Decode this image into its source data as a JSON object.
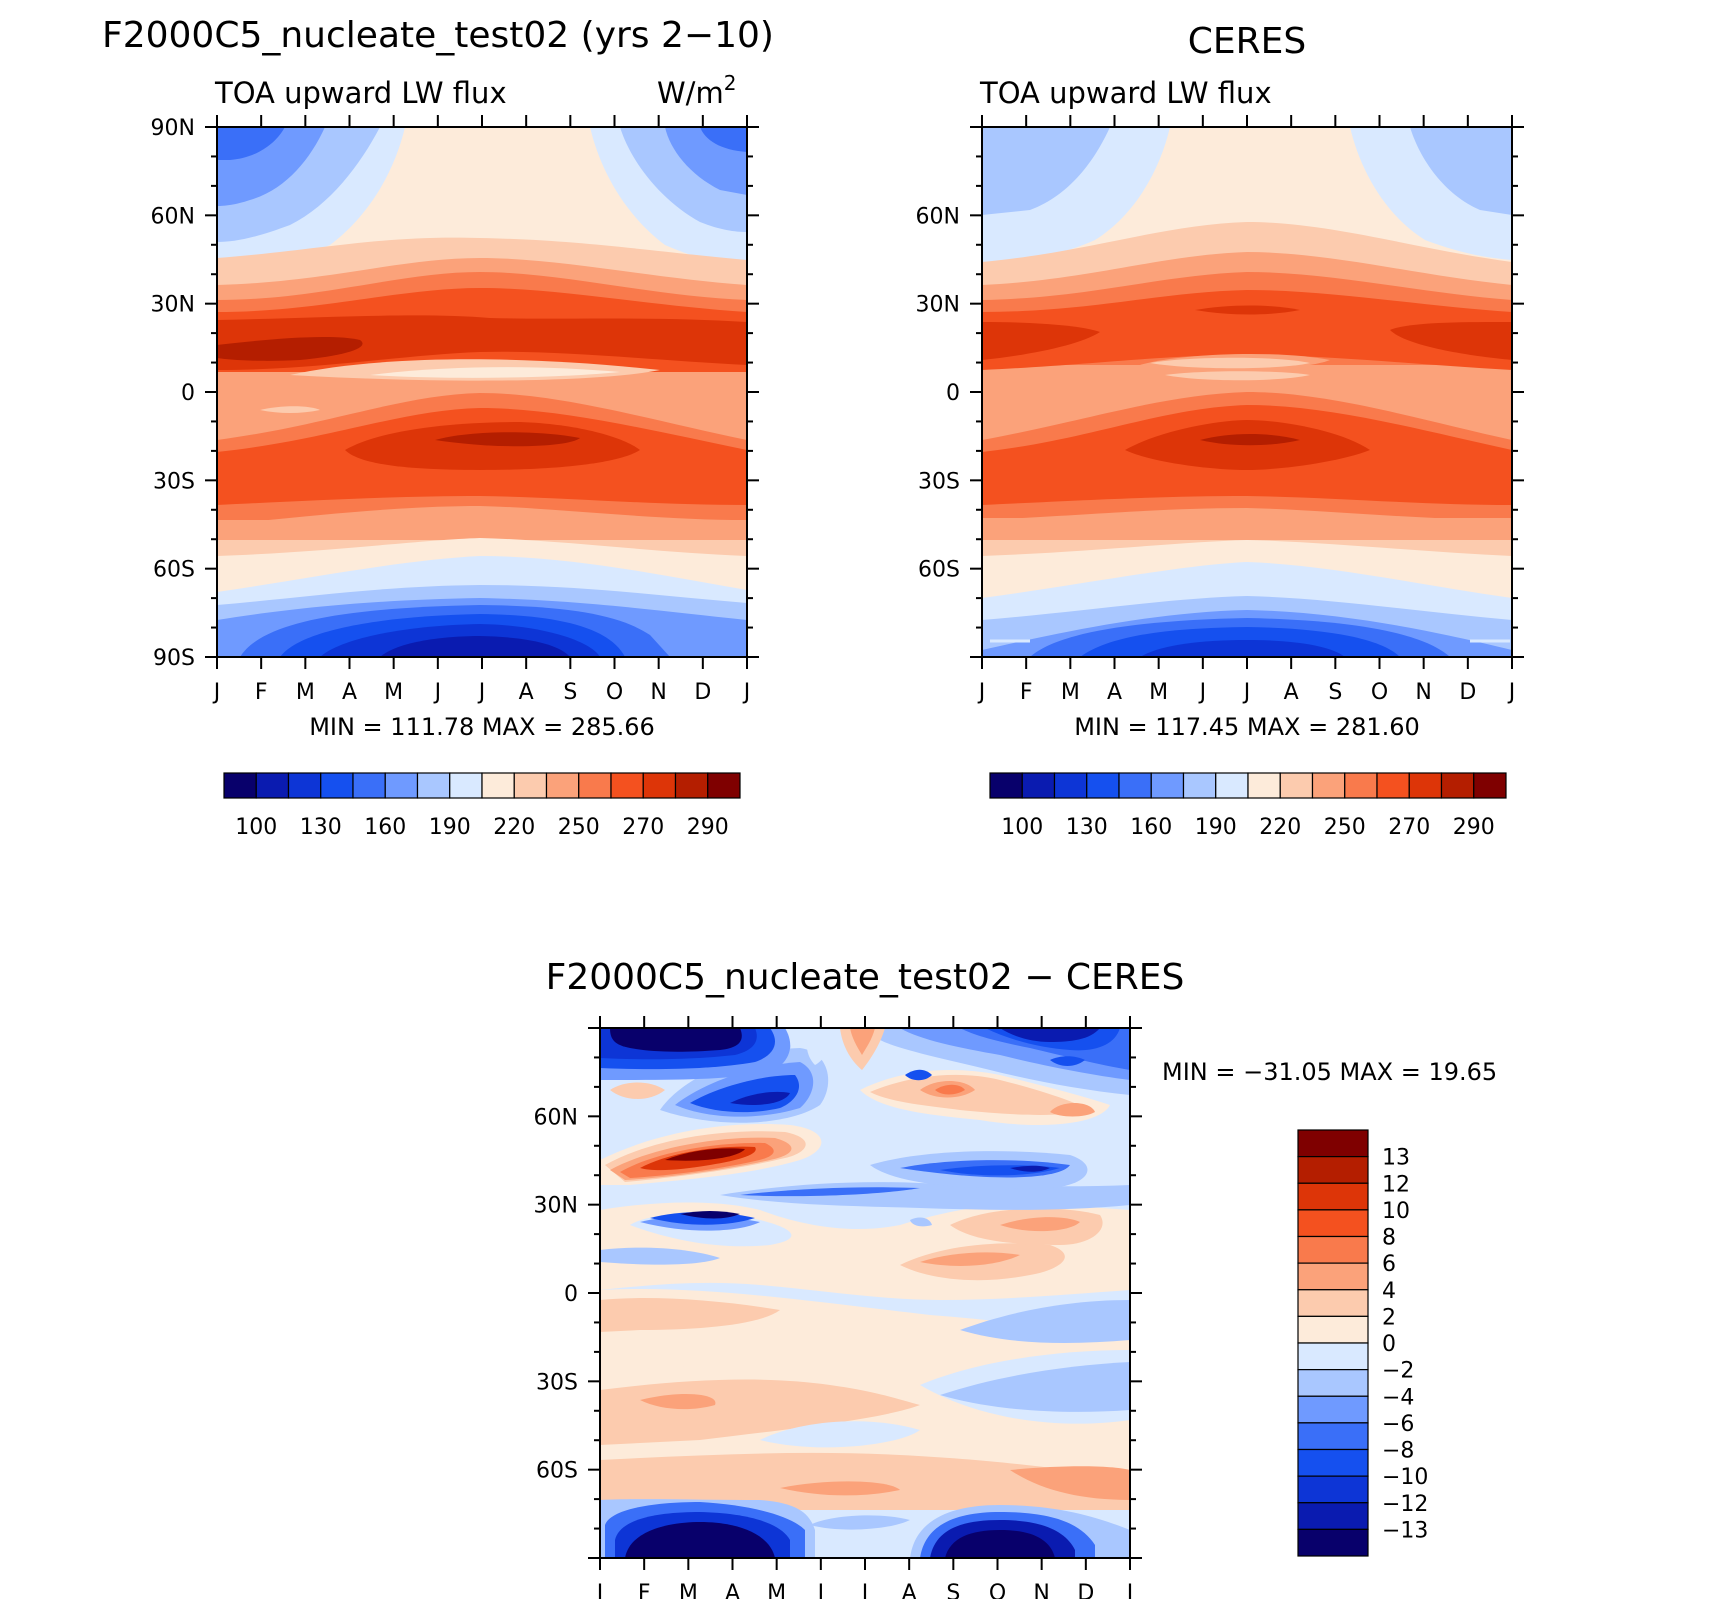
{
  "chart_data": [
    {
      "type": "heatmap",
      "title": "F2000C5_nucleate_test02 (yrs 2−10)",
      "subtitle_left": "TOA upward LW flux",
      "units": "W/m",
      "units_sup": "2",
      "x_ticks": [
        "J",
        "F",
        "M",
        "A",
        "M",
        "J",
        "J",
        "A",
        "S",
        "O",
        "N",
        "D",
        "J"
      ],
      "y_ticks": [
        {
          "lat": 90,
          "label": "90N"
        },
        {
          "lat": 60,
          "label": "60N"
        },
        {
          "lat": 30,
          "label": "30N"
        },
        {
          "lat": 0,
          "label": "0"
        },
        {
          "lat": -30,
          "label": "30S"
        },
        {
          "lat": -60,
          "label": "60S"
        },
        {
          "lat": -90,
          "label": "90S"
        }
      ],
      "ylim": [
        -90,
        90
      ],
      "stats": "MIN = 111.78 MAX = 285.66",
      "colorbar": {
        "orientation": "horizontal",
        "labels": [
          "100",
          "130",
          "160",
          "190",
          "220",
          "250",
          "270",
          "290"
        ],
        "colors": [
          "#08006b",
          "#0a1bb0",
          "#0d35d6",
          "#1550ef",
          "#3a6ff8",
          "#6f9aff",
          "#a9c7ff",
          "#d9e9ff",
          "#fdebda",
          "#fccbae",
          "#fba27a",
          "#f97a4c",
          "#f4511f",
          "#dd3508",
          "#b41e00",
          "#7f0000"
        ]
      }
    },
    {
      "type": "heatmap",
      "title": "CERES",
      "subtitle_left": "TOA upward LW flux",
      "x_ticks": [
        "J",
        "F",
        "M",
        "A",
        "M",
        "J",
        "J",
        "A",
        "S",
        "O",
        "N",
        "D",
        "J"
      ],
      "y_ticks": [
        {
          "lat": 60,
          "label": "60N"
        },
        {
          "lat": 30,
          "label": "30N"
        },
        {
          "lat": 0,
          "label": "0"
        },
        {
          "lat": -30,
          "label": "30S"
        },
        {
          "lat": -60,
          "label": "60S"
        }
      ],
      "ylim": [
        -90,
        90
      ],
      "stats": "MIN = 117.45 MAX = 281.60",
      "colorbar": {
        "orientation": "horizontal",
        "labels": [
          "100",
          "130",
          "160",
          "190",
          "220",
          "250",
          "270",
          "290"
        ],
        "colors": [
          "#08006b",
          "#0a1bb0",
          "#0d35d6",
          "#1550ef",
          "#3a6ff8",
          "#6f9aff",
          "#a9c7ff",
          "#d9e9ff",
          "#fdebda",
          "#fccbae",
          "#fba27a",
          "#f97a4c",
          "#f4511f",
          "#dd3508",
          "#b41e00",
          "#7f0000"
        ]
      }
    },
    {
      "type": "heatmap",
      "title": "F2000C5_nucleate_test02 − CERES",
      "x_ticks": [
        "J",
        "F",
        "M",
        "A",
        "M",
        "J",
        "J",
        "A",
        "S",
        "O",
        "N",
        "D",
        "J"
      ],
      "y_ticks": [
        {
          "lat": 60,
          "label": "60N"
        },
        {
          "lat": 30,
          "label": "30N"
        },
        {
          "lat": 0,
          "label": "0"
        },
        {
          "lat": -30,
          "label": "30S"
        },
        {
          "lat": -60,
          "label": "60S"
        }
      ],
      "ylim": [
        -90,
        90
      ],
      "stats": "MIN = −31.05 MAX =  19.65",
      "colorbar": {
        "orientation": "vertical",
        "labels": [
          "13",
          "12",
          "10",
          "8",
          "6",
          "4",
          "2",
          "0",
          "−2",
          "−4",
          "−6",
          "−8",
          "−10",
          "−12",
          "−13"
        ],
        "colors": [
          "#7f0000",
          "#b41e00",
          "#dd3508",
          "#f4511f",
          "#f97a4c",
          "#fba27a",
          "#fccbae",
          "#fdebda",
          "#d9e9ff",
          "#a9c7ff",
          "#6f9aff",
          "#3a6ff8",
          "#1550ef",
          "#0d35d6",
          "#0a1bb0",
          "#08006b"
        ]
      }
    }
  ]
}
